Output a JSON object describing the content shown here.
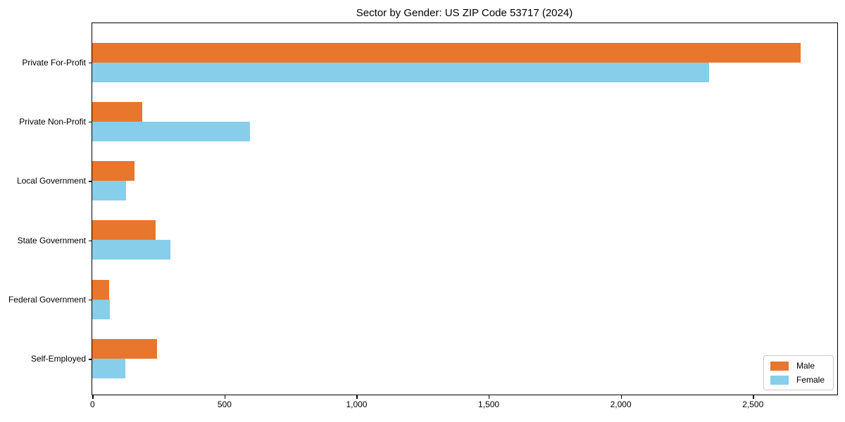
{
  "chart_data": {
    "type": "bar",
    "orientation": "horizontal",
    "title": "Sector by Gender: US ZIP Code 53717 (2024)",
    "xlabel": "",
    "ylabel": "",
    "categories": [
      "Private For-Profit",
      "Private Non-Profit",
      "Local Government",
      "State Government",
      "Federal Government",
      "Self-Employed"
    ],
    "series": [
      {
        "name": "Male",
        "color": "#e8762d",
        "values": [
          2680,
          190,
          160,
          240,
          64,
          246
        ]
      },
      {
        "name": "Female",
        "color": "#87ceeb",
        "values": [
          2335,
          596,
          127,
          296,
          67,
          124
        ]
      }
    ],
    "xlim": [
      0,
      2820
    ],
    "xticks": [
      {
        "value": 0,
        "label": "0"
      },
      {
        "value": 500,
        "label": "500"
      },
      {
        "value": 1000,
        "label": "1,000"
      },
      {
        "value": 1500,
        "label": "1,500"
      },
      {
        "value": 2000,
        "label": "2,000"
      },
      {
        "value": 2500,
        "label": "2,500"
      }
    ],
    "grid": false,
    "legend_position": "lower right",
    "spine_color": "#000000",
    "background_color": "#ffffff"
  }
}
